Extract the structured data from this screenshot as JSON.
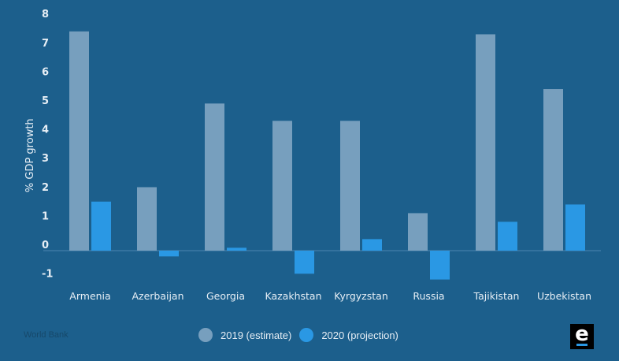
{
  "chart_data": {
    "type": "bar",
    "ylabel": "% GDP growth",
    "ylim": [
      -1,
      8
    ],
    "yticks": [
      8,
      7,
      6,
      5,
      4,
      3,
      2,
      1,
      0,
      -1
    ],
    "categories": [
      "Armenia",
      "Azerbaijan",
      "Georgia",
      "Kazakhstan",
      "Kyrgyzstan",
      "Russia",
      "Tajikistan",
      "Uzbekistan"
    ],
    "series": [
      {
        "name": "2019 (estimate)",
        "color": "#779fbe",
        "values": [
          7.6,
          2.2,
          5.1,
          4.5,
          4.5,
          1.3,
          7.5,
          5.6
        ]
      },
      {
        "name": "2020 (projection)",
        "color": "#2a98e4",
        "values": [
          1.7,
          -0.2,
          0.1,
          -0.8,
          0.4,
          -1.0,
          1.0,
          1.6
        ]
      }
    ],
    "grid": false,
    "legend": "bottom-center"
  },
  "source": "World Bank",
  "logo_text": "e"
}
